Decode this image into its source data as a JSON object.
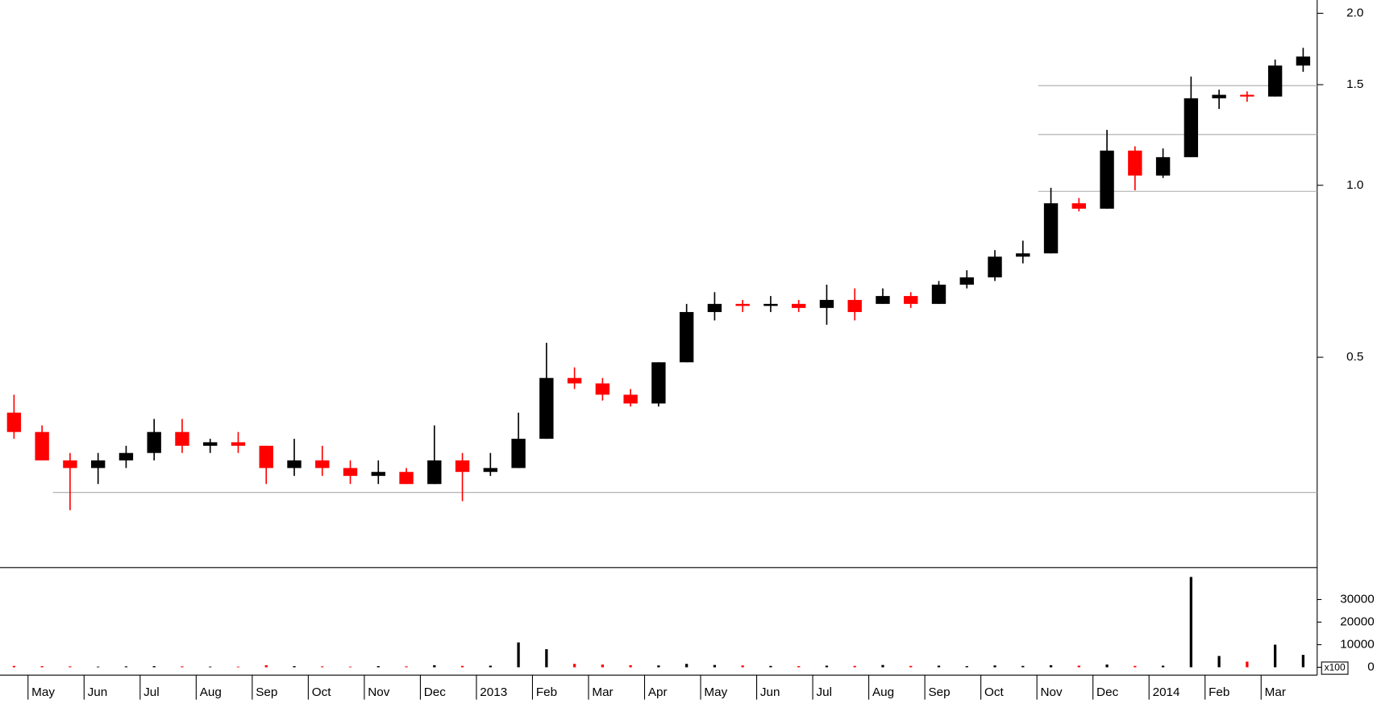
{
  "chart_data": {
    "type": "candlestick",
    "categories": [
      null,
      "May",
      null,
      "Jun",
      null,
      "Jul",
      null,
      "Aug",
      null,
      "Sep",
      null,
      "Oct",
      null,
      "Nov",
      null,
      "Dec",
      null,
      "2013",
      null,
      "Feb",
      null,
      "Mar",
      null,
      "Apr",
      null,
      "May",
      null,
      "Jun",
      null,
      "Jul",
      null,
      "Aug",
      null,
      "Sep",
      null,
      "Oct",
      null,
      "Nov",
      null,
      "Dec",
      null,
      "2014",
      null,
      "Feb",
      null,
      "Mar",
      null
    ],
    "open": [
      0.4,
      0.37,
      0.33,
      0.32,
      0.33,
      0.34,
      0.37,
      0.35,
      0.355,
      0.35,
      0.32,
      0.33,
      0.32,
      0.31,
      0.315,
      0.3,
      0.33,
      0.315,
      0.32,
      0.36,
      0.46,
      0.45,
      0.43,
      0.415,
      0.49,
      0.6,
      0.62,
      0.615,
      0.62,
      0.61,
      0.63,
      0.62,
      0.64,
      0.62,
      0.67,
      0.69,
      0.75,
      0.76,
      0.93,
      0.91,
      1.15,
      1.04,
      1.12,
      1.42,
      1.44,
      1.43,
      1.62
    ],
    "high": [
      0.43,
      0.38,
      0.34,
      0.34,
      0.35,
      0.39,
      0.39,
      0.36,
      0.37,
      0.35,
      0.36,
      0.35,
      0.33,
      0.33,
      0.32,
      0.38,
      0.34,
      0.34,
      0.4,
      0.53,
      0.48,
      0.46,
      0.44,
      0.49,
      0.62,
      0.65,
      0.63,
      0.64,
      0.63,
      0.67,
      0.66,
      0.66,
      0.65,
      0.68,
      0.71,
      0.77,
      0.8,
      0.99,
      0.95,
      1.25,
      1.17,
      1.16,
      1.55,
      1.47,
      1.46,
      1.66,
      1.74
    ],
    "low": [
      0.36,
      0.33,
      0.27,
      0.3,
      0.32,
      0.33,
      0.34,
      0.34,
      0.34,
      0.3,
      0.31,
      0.31,
      0.3,
      0.3,
      0.3,
      0.3,
      0.28,
      0.31,
      0.32,
      0.36,
      0.44,
      0.42,
      0.41,
      0.41,
      0.49,
      0.58,
      0.6,
      0.6,
      0.6,
      0.57,
      0.58,
      0.62,
      0.61,
      0.62,
      0.66,
      0.68,
      0.73,
      0.76,
      0.9,
      0.91,
      0.98,
      1.03,
      1.12,
      1.36,
      1.4,
      1.43,
      1.58
    ],
    "close": [
      0.37,
      0.33,
      0.32,
      0.33,
      0.34,
      0.37,
      0.35,
      0.355,
      0.35,
      0.32,
      0.33,
      0.32,
      0.31,
      0.315,
      0.3,
      0.33,
      0.315,
      0.32,
      0.36,
      0.46,
      0.45,
      0.43,
      0.415,
      0.49,
      0.6,
      0.62,
      0.615,
      0.62,
      0.61,
      0.63,
      0.6,
      0.64,
      0.62,
      0.67,
      0.69,
      0.75,
      0.76,
      0.93,
      0.91,
      1.15,
      1.04,
      1.12,
      1.42,
      1.44,
      1.43,
      1.62,
      1.68
    ],
    "up_color": "#000000",
    "down_color": "#ff0000",
    "yscale": "log",
    "ylim": [
      0.215,
      2.11
    ],
    "yticks": [
      0.5,
      {
        "value": 1,
        "label": "1.0"
      },
      1.5,
      {
        "value": 2,
        "label": "2.0"
      }
    ],
    "reference_lines": [
      0.29,
      0.976,
      1.227,
      1.494
    ],
    "volume": {
      "values": [
        600,
        500,
        400,
        300,
        400,
        500,
        400,
        300,
        300,
        900,
        500,
        400,
        300,
        500,
        400,
        900,
        600,
        700,
        11000,
        8000,
        1500,
        1200,
        900,
        800,
        1500,
        1000,
        800,
        600,
        500,
        700,
        600,
        1000,
        600,
        700,
        500,
        800,
        600,
        900,
        700,
        1200,
        600,
        700,
        40000,
        5000,
        2500,
        10000,
        5500
      ],
      "ylim": [
        0,
        43000
      ],
      "yticks": [
        0,
        10000,
        20000,
        30000
      ],
      "unit_label": "x100"
    }
  }
}
